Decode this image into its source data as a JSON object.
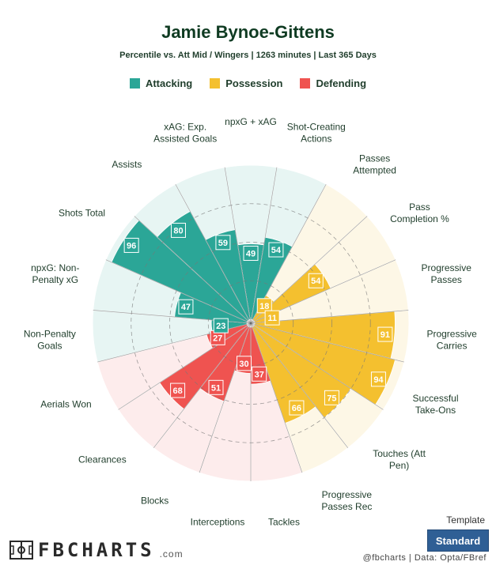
{
  "header": {
    "title": "Jamie Bynoe-Gittens",
    "subtitle": "Percentile vs. Att Mid / Wingers | 1263 minutes | Last 365 Days"
  },
  "legend": [
    {
      "label": "Attacking",
      "color": "#2ba697"
    },
    {
      "label": "Possession",
      "color": "#f4c02f"
    },
    {
      "label": "Defending",
      "color": "#ef5350"
    }
  ],
  "colors": {
    "attacking": "#2ba697",
    "possession": "#f4c02f",
    "defending": "#ef5350",
    "attacking_bg": "#e7f5f3",
    "possession_bg": "#fdf7e6",
    "defending_bg": "#fdecec"
  },
  "chart_data": {
    "type": "polar_bar",
    "ylim": [
      0,
      100
    ],
    "categories": [
      {
        "label": "npxG + xAG",
        "value": 49,
        "group": "Attacking"
      },
      {
        "label": "Shot-Creating Actions",
        "value": 54,
        "group": "Attacking"
      },
      {
        "label": "Passes Attempted",
        "value": 18,
        "group": "Possession"
      },
      {
        "label": "Pass Completion %",
        "value": 54,
        "group": "Possession"
      },
      {
        "label": "Progressive Passes",
        "value": 11,
        "group": "Possession"
      },
      {
        "label": "Progressive Carries",
        "value": 91,
        "group": "Possession"
      },
      {
        "label": "Successful Take-Ons",
        "value": 94,
        "group": "Possession"
      },
      {
        "label": "Touches (Att Pen)",
        "value": 75,
        "group": "Possession"
      },
      {
        "label": "Progressive Passes Rec",
        "value": 66,
        "group": "Possession"
      },
      {
        "label": "Tackles",
        "value": 37,
        "group": "Defending"
      },
      {
        "label": "Interceptions",
        "value": 30,
        "group": "Defending"
      },
      {
        "label": "Blocks",
        "value": 51,
        "group": "Defending"
      },
      {
        "label": "Clearances",
        "value": 68,
        "group": "Defending"
      },
      {
        "label": "Aerials Won",
        "value": 27,
        "group": "Defending"
      },
      {
        "label": "Non-Penalty Goals",
        "value": 23,
        "group": "Attacking"
      },
      {
        "label": "npxG: Non-Penalty xG",
        "value": 47,
        "group": "Attacking"
      },
      {
        "label": "Shots Total",
        "value": 96,
        "group": "Attacking"
      },
      {
        "label": "Assists",
        "value": 80,
        "group": "Attacking"
      },
      {
        "label": "xAG: Exp. Assisted Goals",
        "value": 59,
        "group": "Attacking"
      }
    ]
  },
  "footer": {
    "logo": "FBCHARTS",
    "logo_suffix": ".com",
    "template_label": "Template",
    "template_button": "Standard",
    "credit": "@fbcharts | Data: Opta/FBref"
  }
}
